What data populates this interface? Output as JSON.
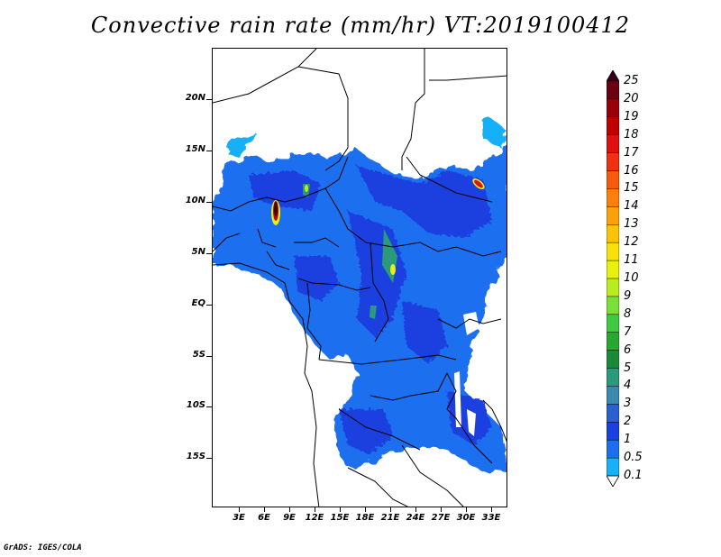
{
  "title": "Convective rain rate (mm/hr) VT:2019100412",
  "footer": "GrADS: IGES/COLA",
  "lat_labels": [
    "20N",
    "15N",
    "10N",
    "5N",
    "EQ",
    "5S",
    "10S",
    "15S"
  ],
  "lon_labels": [
    "3E",
    "6E",
    "9E",
    "12E",
    "15E",
    "18E",
    "21E",
    "24E",
    "27E",
    "30E",
    "33E"
  ],
  "legend": {
    "labels": [
      "25",
      "20",
      "19",
      "18",
      "17",
      "16",
      "15",
      "14",
      "13",
      "12",
      "11",
      "10",
      "9",
      "8",
      "7",
      "6",
      "5",
      "4",
      "3",
      "2",
      "1",
      "0.5",
      "0.1"
    ],
    "colors": [
      "#3a0018",
      "#6b0010",
      "#9a0008",
      "#c00000",
      "#e01010",
      "#f03010",
      "#f85a10",
      "#fb7e0e",
      "#fca10c",
      "#fcc20a",
      "#f8e10a",
      "#e8f010",
      "#b8ec20",
      "#78e038",
      "#40c840",
      "#28a830",
      "#1a8a3a",
      "#2a9a7a",
      "#3a8ab0",
      "#2a60d0",
      "#1a40e0",
      "#1c70f0",
      "#18b0f8"
    ]
  }
}
